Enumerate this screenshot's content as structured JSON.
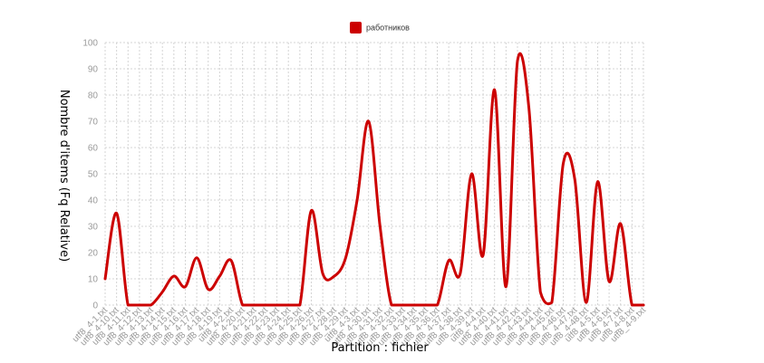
{
  "chart_data": {
    "type": "line",
    "title": "",
    "xlabel": "Partition : fichier",
    "ylabel": "Nombre d'items (Fq Relative)",
    "ylim": [
      0,
      100
    ],
    "yticks": [
      0,
      10,
      20,
      30,
      40,
      50,
      60,
      70,
      80,
      90,
      100
    ],
    "grid": true,
    "legend_position": "top-center",
    "categories": [
      "utf8_4-1.txt",
      "utf8_4-10.txt",
      "utf8_4-11.txt",
      "utf8_4-12.txt",
      "utf8_4-13.txt",
      "utf8_4-14.txt",
      "utf8_4-15.txt",
      "utf8_4-16.txt",
      "utf8_4-17.txt",
      "utf8_4-18.txt",
      "utf8_4-19.txt",
      "utf8_4-2.txt",
      "utf8_4-20.txt",
      "utf8_4-21.txt",
      "utf8_4-22.txt",
      "utf8_4-23.txt",
      "utf8_4-24.txt",
      "utf8_4-25.txt",
      "utf8_4-26.txt",
      "utf8_4-27.txt",
      "utf8_4-28.txt",
      "utf8_4-29.txt",
      "utf8_4-3.txt",
      "utf8_4-30.txt",
      "utf8_4-31.txt",
      "utf8_4-32.txt",
      "utf8_4-33.txt",
      "utf8_4-34.txt",
      "utf8_4-35.txt",
      "utf8_4-36.txt",
      "utf8_4-37.txt",
      "utf8_4-38.txt",
      "utf8_4-39.txt",
      "utf8_4-4.txt",
      "utf8_4-40.txt",
      "utf8_4-41.txt",
      "utf8_4-42.txt",
      "utf8_4-43.txt",
      "utf8_4-44.txt",
      "utf8_4-45.txt",
      "utf8_4-46.txt",
      "utf8_4-47.txt",
      "utf8_4-48.txt",
      "utf8_4-5.txt",
      "utf8_4-6.txt",
      "utf8_4-7.txt",
      "utf8_4-8.txt",
      "utf8_4-9.txt"
    ],
    "series": [
      {
        "name": "работников",
        "color": "#cc0000",
        "values": [
          10,
          35,
          0,
          0,
          0,
          5,
          11,
          7,
          18,
          6,
          11,
          17,
          0,
          0,
          0,
          0,
          0,
          0,
          36,
          12,
          11,
          18,
          40,
          70,
          30,
          0,
          0,
          0,
          0,
          0,
          17,
          12,
          50,
          19,
          82,
          7,
          93,
          75,
          5,
          1,
          54,
          48,
          1,
          47,
          9,
          31,
          0,
          0
        ]
      }
    ]
  }
}
